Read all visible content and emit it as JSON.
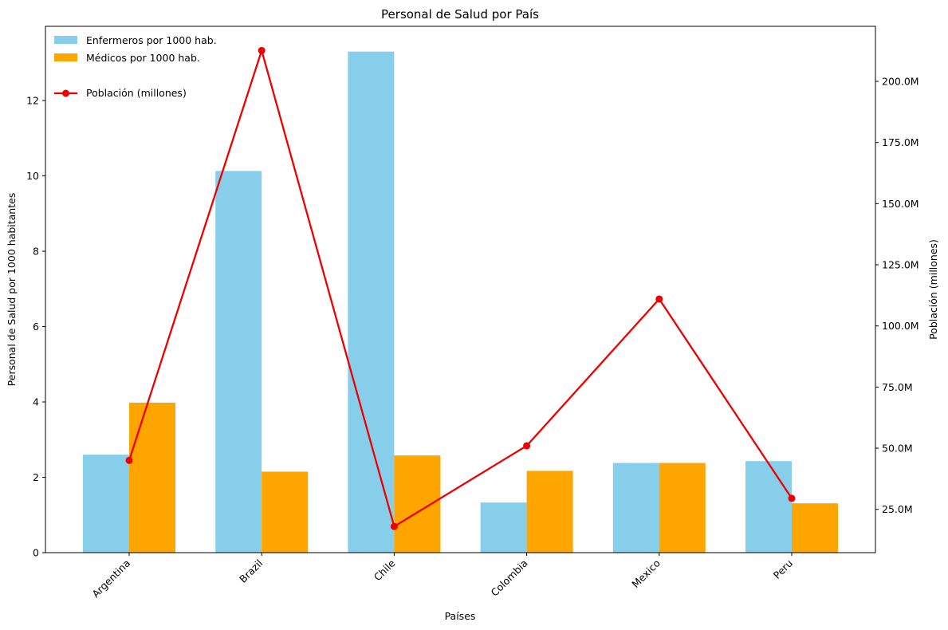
{
  "chart_data": {
    "type": "bar",
    "title": "Personal de Salud por País",
    "xlabel": "Países",
    "ylabel": "Personal de Salud por 1000 habitantes",
    "y2label": "Población (millones)",
    "categories": [
      "Argentina",
      "Brazil",
      "Chile",
      "Colombia",
      "Mexico",
      "Peru"
    ],
    "ylim": [
      0,
      13.97
    ],
    "y_ticks": [
      0,
      2,
      4,
      6,
      8,
      10,
      12
    ],
    "y2lim": [
      7.3,
      222.5
    ],
    "y2_ticks": [
      25,
      50,
      75,
      100,
      125,
      150,
      175,
      200
    ],
    "y2_tick_labels": [
      "25.0M",
      "50.0M",
      "75.0M",
      "100.0M",
      "125.0M",
      "150.0M",
      "175.0M",
      "200.0M"
    ],
    "grid": false,
    "legend_placement": "top-left",
    "series": [
      {
        "name": "Enfermeros por 1000 hab.",
        "type": "bar",
        "axis": "left",
        "color": "#87CEEB",
        "values": [
          2.6,
          10.13,
          13.3,
          1.33,
          2.38,
          2.43
        ]
      },
      {
        "name": "Médicos por 1000 hab.",
        "type": "bar",
        "axis": "left",
        "color": "#FFA500",
        "values": [
          3.98,
          2.15,
          2.58,
          2.17,
          2.38,
          1.31
        ]
      },
      {
        "name": "Población (millones)",
        "type": "line",
        "axis": "right",
        "color": "#EE0000",
        "values": [
          45.0,
          212.6,
          18.0,
          51.0,
          111.0,
          29.5
        ]
      }
    ]
  }
}
